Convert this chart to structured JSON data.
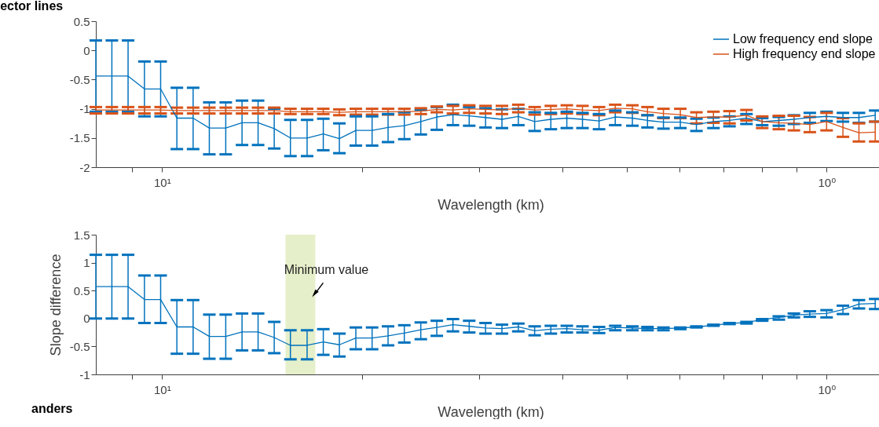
{
  "chart_data": [
    {
      "type": "line",
      "title": "ector lines",
      "xlabel": "Wavelength (km)",
      "log": "x",
      "legend": "top right",
      "line_style": "solid",
      "marker": "none",
      "grid": false,
      "x": [
        12.58,
        11.9,
        11.25,
        10.63,
        10.05,
        9.5,
        8.98,
        8.49,
        8.02,
        7.58,
        7.17,
        6.78,
        6.41,
        6.05,
        5.72,
        5.41,
        5.11,
        4.83,
        4.57,
        4.32,
        4.08,
        3.86,
        3.65,
        3.45,
        3.26,
        3.08,
        2.91,
        2.75,
        2.6,
        2.46,
        2.33,
        2.2,
        2.08,
        1.96,
        1.86,
        1.76,
        1.66,
        1.57,
        1.48,
        1.4,
        1.32,
        1.25,
        1.18,
        1.12,
        1.06,
        1.0,
        0.945,
        0.894,
        0.845
      ],
      "xlim": [
        12.58,
        0.816
      ],
      "xticks": [
        {
          "value": 11.11,
          "label": null
        },
        {
          "value": 10,
          "label": "10¹"
        },
        {
          "value": 5,
          "label": null
        },
        {
          "value": 3.333,
          "label": null
        },
        {
          "value": 2.5,
          "label": null
        },
        {
          "value": 2,
          "label": null
        },
        {
          "value": 1.667,
          "label": null
        },
        {
          "value": 1.429,
          "label": null
        },
        {
          "value": 1.25,
          "label": null
        },
        {
          "value": 1.111,
          "label": null
        },
        {
          "value": 1,
          "label": "10⁰"
        }
      ],
      "ylim": [
        -2,
        0.5
      ],
      "yticks": [
        -2,
        -1.5,
        -1,
        -0.5,
        0,
        0.5
      ],
      "series": [
        {
          "name": "Low frequency end slope",
          "color": "#0072bd",
          "values": [
            -0.44,
            -0.44,
            -0.44,
            -0.66,
            -0.66,
            -1.16,
            -1.16,
            -1.33,
            -1.33,
            -1.24,
            -1.24,
            -1.34,
            -1.5,
            -1.5,
            -1.43,
            -1.51,
            -1.37,
            -1.37,
            -1.32,
            -1.29,
            -1.22,
            -1.14,
            -1.1,
            -1.12,
            -1.15,
            -1.18,
            -1.13,
            -1.22,
            -1.18,
            -1.16,
            -1.18,
            -1.21,
            -1.14,
            -1.16,
            -1.2,
            -1.23,
            -1.23,
            -1.27,
            -1.22,
            -1.2,
            -1.16,
            -1.22,
            -1.2,
            -1.18,
            -1.15,
            -1.13,
            -1.15,
            -1.15,
            -1.11
          ],
          "errors": [
            [
              -1.05,
              0.17
            ],
            [
              -1.05,
              0.17
            ],
            [
              -1.05,
              0.17
            ],
            [
              -1.13,
              -0.19
            ],
            [
              -1.13,
              -0.19
            ],
            [
              -1.69,
              -0.64
            ],
            [
              -1.69,
              -0.64
            ],
            [
              -1.78,
              -0.89
            ],
            [
              -1.78,
              -0.89
            ],
            [
              -1.62,
              -0.86
            ],
            [
              -1.62,
              -0.86
            ],
            [
              -1.68,
              -1.0
            ],
            [
              -1.81,
              -1.19
            ],
            [
              -1.81,
              -1.19
            ],
            [
              -1.71,
              -1.17
            ],
            [
              -1.76,
              -1.25
            ],
            [
              -1.63,
              -1.13
            ],
            [
              -1.63,
              -1.13
            ],
            [
              -1.57,
              -1.09
            ],
            [
              -1.52,
              -1.06
            ],
            [
              -1.44,
              -1.02
            ],
            [
              -1.36,
              -0.97
            ],
            [
              -1.28,
              -0.93
            ],
            [
              -1.29,
              -0.97
            ],
            [
              -1.32,
              -0.99
            ],
            [
              -1.33,
              -1.01
            ],
            [
              -1.28,
              -1.0
            ],
            [
              -1.38,
              -1.06
            ],
            [
              -1.35,
              -1.07
            ],
            [
              -1.33,
              -1.05
            ],
            [
              -1.33,
              -1.07
            ],
            [
              -1.35,
              -1.09
            ],
            [
              -1.28,
              -1.03
            ],
            [
              -1.29,
              -1.06
            ],
            [
              -1.32,
              -1.11
            ],
            [
              -1.34,
              -1.15
            ],
            [
              -1.33,
              -1.15
            ],
            [
              -1.38,
              -1.17
            ],
            [
              -1.33,
              -1.15
            ],
            [
              -1.3,
              -1.13
            ],
            [
              -1.26,
              -1.09
            ],
            [
              -1.28,
              -1.16
            ],
            [
              -1.29,
              -1.14
            ],
            [
              -1.26,
              -1.11
            ],
            [
              -1.24,
              -1.07
            ],
            [
              -1.21,
              -1.05
            ],
            [
              -1.22,
              -1.07
            ],
            [
              -1.24,
              -1.07
            ],
            [
              -1.22,
              -1.03
            ]
          ]
        },
        {
          "name": "High frequency end slope",
          "color": "#d95319",
          "values": [
            -1.02,
            -1.02,
            -1.02,
            -1.02,
            -1.02,
            -1.03,
            -1.03,
            -1.03,
            -1.03,
            -1.03,
            -1.03,
            -1.03,
            -1.05,
            -1.05,
            -1.05,
            -1.06,
            -1.05,
            -1.05,
            -1.05,
            -1.05,
            -1.04,
            -1.01,
            -1.02,
            -1.0,
            -1.01,
            -1.02,
            -0.99,
            -1.02,
            -1.01,
            -1.0,
            -1.02,
            -1.03,
            -0.99,
            -1.0,
            -1.05,
            -1.08,
            -1.1,
            -1.15,
            -1.14,
            -1.14,
            -1.11,
            -1.22,
            -1.24,
            -1.25,
            -1.27,
            -1.22,
            -1.32,
            -1.41,
            -1.4
          ],
          "errors": [
            [
              -1.08,
              -0.97
            ],
            [
              -1.08,
              -0.97
            ],
            [
              -1.08,
              -0.97
            ],
            [
              -1.08,
              -0.97
            ],
            [
              -1.08,
              -0.97
            ],
            [
              -1.08,
              -0.98
            ],
            [
              -1.08,
              -0.98
            ],
            [
              -1.08,
              -0.98
            ],
            [
              -1.08,
              -0.98
            ],
            [
              -1.08,
              -0.98
            ],
            [
              -1.08,
              -0.98
            ],
            [
              -1.08,
              -0.98
            ],
            [
              -1.09,
              -1.0
            ],
            [
              -1.09,
              -1.0
            ],
            [
              -1.09,
              -1.0
            ],
            [
              -1.11,
              -1.01
            ],
            [
              -1.1,
              -1.0
            ],
            [
              -1.1,
              -1.0
            ],
            [
              -1.1,
              -1.0
            ],
            [
              -1.1,
              -1.0
            ],
            [
              -1.09,
              -0.99
            ],
            [
              -1.06,
              -0.96
            ],
            [
              -1.08,
              -0.95
            ],
            [
              -1.07,
              -0.94
            ],
            [
              -1.08,
              -0.95
            ],
            [
              -1.09,
              -0.95
            ],
            [
              -1.06,
              -0.93
            ],
            [
              -1.1,
              -0.97
            ],
            [
              -1.09,
              -0.95
            ],
            [
              -1.08,
              -0.94
            ],
            [
              -1.09,
              -0.95
            ],
            [
              -1.11,
              -0.97
            ],
            [
              -1.06,
              -0.93
            ],
            [
              -1.07,
              -0.94
            ],
            [
              -1.11,
              -0.97
            ],
            [
              -1.16,
              -1.0
            ],
            [
              -1.16,
              -1.0
            ],
            [
              -1.25,
              -1.06
            ],
            [
              -1.24,
              -1.05
            ],
            [
              -1.25,
              -1.04
            ],
            [
              -1.2,
              -1.02
            ],
            [
              -1.33,
              -1.13
            ],
            [
              -1.35,
              -1.12
            ],
            [
              -1.37,
              -1.12
            ],
            [
              -1.4,
              -1.14
            ],
            [
              -1.37,
              -1.07
            ],
            [
              -1.48,
              -1.16
            ],
            [
              -1.56,
              -1.25
            ],
            [
              -1.56,
              -1.22
            ]
          ]
        }
      ]
    },
    {
      "type": "line",
      "xlabel": "Wavelength (km)",
      "ylabel": "Slope difference",
      "log": "x",
      "line_style": "solid",
      "marker": "none",
      "grid": false,
      "x": [
        12.58,
        11.9,
        11.25,
        10.63,
        10.05,
        9.5,
        8.98,
        8.49,
        8.02,
        7.58,
        7.17,
        6.78,
        6.41,
        6.05,
        5.72,
        5.41,
        5.11,
        4.83,
        4.57,
        4.32,
        4.08,
        3.86,
        3.65,
        3.45,
        3.26,
        3.08,
        2.91,
        2.75,
        2.6,
        2.46,
        2.33,
        2.2,
        2.08,
        1.96,
        1.86,
        1.76,
        1.66,
        1.57,
        1.48,
        1.4,
        1.32,
        1.25,
        1.18,
        1.12,
        1.06,
        1.0,
        0.945,
        0.894,
        0.845
      ],
      "xlim": [
        12.58,
        0.816
      ],
      "xticks": [
        {
          "value": 11.11,
          "label": null
        },
        {
          "value": 10,
          "label": "10¹"
        },
        {
          "value": 5,
          "label": null
        },
        {
          "value": 3.333,
          "label": null
        },
        {
          "value": 2.5,
          "label": null
        },
        {
          "value": 2,
          "label": null
        },
        {
          "value": 1.667,
          "label": null
        },
        {
          "value": 1.429,
          "label": null
        },
        {
          "value": 1.25,
          "label": null
        },
        {
          "value": 1.111,
          "label": null
        },
        {
          "value": 1,
          "label": "10⁰"
        }
      ],
      "ylim": [
        -1,
        1.5
      ],
      "yticks": [
        -1,
        -0.5,
        0,
        0.5,
        1,
        1.5
      ],
      "bands": [
        {
          "axis": "x",
          "from": 6.52,
          "to": 5.88,
          "label": "Minimum value",
          "color": "#e5efc9"
        }
      ],
      "annotations": [
        "anders"
      ],
      "series": [
        {
          "color": "#0072bd",
          "values": [
            0.57,
            0.57,
            0.57,
            0.34,
            0.34,
            -0.15,
            -0.15,
            -0.32,
            -0.32,
            -0.24,
            -0.24,
            -0.34,
            -0.48,
            -0.48,
            -0.42,
            -0.47,
            -0.35,
            -0.35,
            -0.31,
            -0.26,
            -0.2,
            -0.16,
            -0.11,
            -0.14,
            -0.17,
            -0.18,
            -0.15,
            -0.22,
            -0.19,
            -0.18,
            -0.2,
            -0.21,
            -0.16,
            -0.17,
            -0.18,
            -0.18,
            -0.17,
            -0.15,
            -0.12,
            -0.09,
            -0.07,
            -0.02,
            0.02,
            0.06,
            0.08,
            0.09,
            0.16,
            0.26,
            0.27
          ],
          "errors": [
            [
              0.0,
              1.14
            ],
            [
              0.0,
              1.14
            ],
            [
              0.0,
              1.14
            ],
            [
              -0.08,
              0.77
            ],
            [
              -0.08,
              0.77
            ],
            [
              -0.63,
              0.33
            ],
            [
              -0.63,
              0.33
            ],
            [
              -0.72,
              0.07
            ],
            [
              -0.72,
              0.07
            ],
            [
              -0.57,
              0.09
            ],
            [
              -0.57,
              0.09
            ],
            [
              -0.62,
              -0.06
            ],
            [
              -0.73,
              -0.21
            ],
            [
              -0.73,
              -0.21
            ],
            [
              -0.65,
              -0.19
            ],
            [
              -0.68,
              -0.27
            ],
            [
              -0.55,
              -0.16
            ],
            [
              -0.55,
              -0.16
            ],
            [
              -0.48,
              -0.14
            ],
            [
              -0.43,
              -0.12
            ],
            [
              -0.37,
              -0.07
            ],
            [
              -0.31,
              -0.04
            ],
            [
              -0.23,
              -0.01
            ],
            [
              -0.25,
              -0.04
            ],
            [
              -0.27,
              -0.08
            ],
            [
              -0.27,
              -0.11
            ],
            [
              -0.23,
              -0.09
            ],
            [
              -0.3,
              -0.14
            ],
            [
              -0.27,
              -0.13
            ],
            [
              -0.25,
              -0.13
            ],
            [
              -0.25,
              -0.14
            ],
            [
              -0.26,
              -0.15
            ],
            [
              -0.21,
              -0.13
            ],
            [
              -0.21,
              -0.14
            ],
            [
              -0.21,
              -0.15
            ],
            [
              -0.21,
              -0.16
            ],
            [
              -0.19,
              -0.16
            ],
            [
              -0.16,
              -0.14
            ],
            [
              -0.13,
              -0.11
            ],
            [
              -0.1,
              -0.08
            ],
            [
              -0.09,
              -0.06
            ],
            [
              -0.04,
              -0.01
            ],
            [
              -0.02,
              0.04
            ],
            [
              0.02,
              0.09
            ],
            [
              0.03,
              0.13
            ],
            [
              0.02,
              0.15
            ],
            [
              0.08,
              0.23
            ],
            [
              0.18,
              0.33
            ],
            [
              0.17,
              0.35
            ]
          ]
        }
      ]
    }
  ]
}
